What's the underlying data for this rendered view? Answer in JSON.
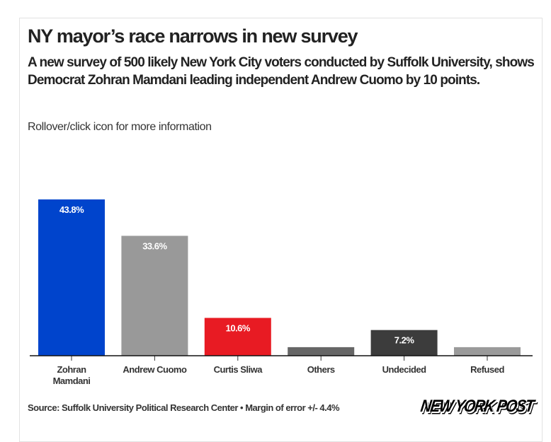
{
  "header": {
    "title": "NY mayor’s race narrows in new survey",
    "subtitle": "A new survey of 500 likely New York City voters conducted by Suffolk University, shows Democrat Zohran Mamdani leading independent Andrew Cuomo by 10 points.",
    "note": "Rollover/click icon for more information"
  },
  "footer": {
    "source": "Source: Suffolk University Political Research Center • Margin of error +/- 4.4%",
    "logo": "NEW YORK POST"
  },
  "chart_data": {
    "type": "bar",
    "title": "NY mayor’s race narrows in new survey",
    "xlabel": "",
    "ylabel": "",
    "ylim": [
      0,
      45
    ],
    "grid": false,
    "categories": [
      "Zohran Mamdani",
      "Andrew Cuomo",
      "Curtis Sliwa",
      "Others",
      "Undecided",
      "Refused"
    ],
    "category_lines": [
      [
        "Zohran",
        "Mamdani"
      ],
      [
        "Andrew Cuomo"
      ],
      [
        "Curtis Sliwa"
      ],
      [
        "Others"
      ],
      [
        "Undecided"
      ],
      [
        "Refused"
      ]
    ],
    "values": [
      43.8,
      33.6,
      10.6,
      2.4,
      7.2,
      2.4
    ],
    "data_labels": [
      "43.8%",
      "33.6%",
      "10.6%",
      "",
      "7.2%",
      ""
    ],
    "colors": [
      "#0044cc",
      "#999999",
      "#e81b23",
      "#666666",
      "#3c3c3c",
      "#9a9a9a"
    ]
  }
}
